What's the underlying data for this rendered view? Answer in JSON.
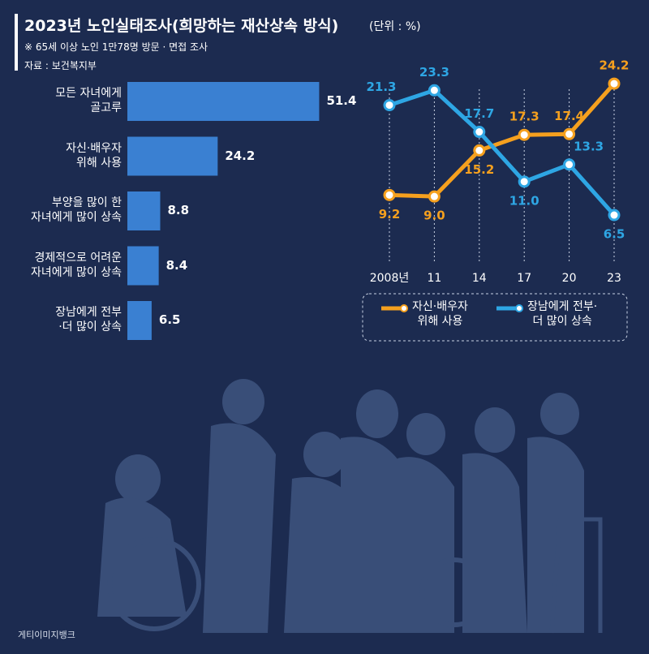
{
  "title": "2023년 노인실태조사(희망하는 재산상속 방식)",
  "unit": "(단위 : %)",
  "note": "※ 65세 이상 노인 1만78명 방문 · 면접 조사",
  "source": "자료 : 보건복지부",
  "credit": "게티이미지뱅크",
  "chart_data": [
    {
      "type": "bar",
      "orientation": "horizontal",
      "color": "#3a80d2",
      "categories": [
        "모든 자녀에게\n골고루",
        "자신·배우자\n위해 사용",
        "부양을 많이 한\n자녀에게 많이 상속",
        "경제적으로 어려운\n자녀에게 많이 상속",
        "장남에게 전부\n·더 많이 상속"
      ],
      "values": [
        51.4,
        24.2,
        8.8,
        8.4,
        6.5
      ]
    },
    {
      "type": "line",
      "categories": [
        "2008년",
        "11",
        "14",
        "17",
        "20",
        "23"
      ],
      "series": [
        {
          "name": "자신·배우자\n위해 사용",
          "color": "#f5a01e",
          "values": [
            9.2,
            9.0,
            15.2,
            17.3,
            17.4,
            24.2
          ],
          "value_labels": [
            "9.2",
            "9.0",
            "15.2",
            "17.3",
            "17.4",
            "24.2"
          ]
        },
        {
          "name": "장남에게 전부·\n더 많이 상속",
          "color": "#2ea6e4",
          "values": [
            21.3,
            23.3,
            17.7,
            11.0,
            13.3,
            6.5
          ],
          "value_labels": [
            "21.3",
            "23.3",
            "17.7",
            "11.0",
            "13.3",
            "6.5"
          ]
        }
      ]
    }
  ]
}
